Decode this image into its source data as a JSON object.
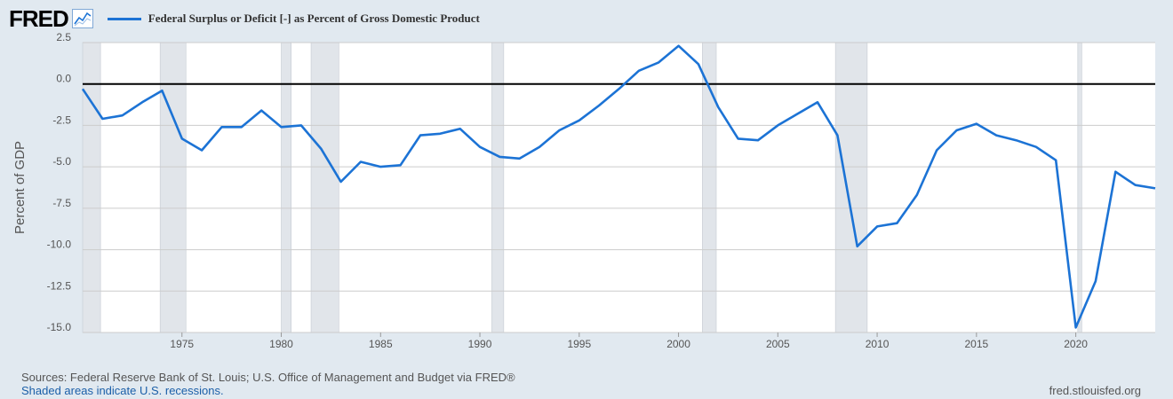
{
  "header": {
    "logo_text": "FRED",
    "logo_icon": "line-graph-icon"
  },
  "legend": {
    "label": "Federal Surplus or Deficit [-] as Percent of Gross Domestic Product",
    "color": "#1c73d5"
  },
  "footer": {
    "sources": "Sources: Federal Reserve Bank of St. Louis; U.S. Office of Management and Budget via FRED®",
    "recessions": "Shaded areas indicate U.S. recessions.",
    "site": "fred.stlouisfed.org"
  },
  "colors": {
    "background": "#e1e9f0",
    "plot": "#ffffff",
    "grid": "#cccccc",
    "recession": "#e1e5ea",
    "line": "#1c73d5",
    "zero_line": "#000000"
  },
  "chart_data": {
    "type": "line",
    "title": "Federal Surplus or Deficit [-] as Percent of Gross Domestic Product",
    "xlabel": "",
    "ylabel": "Percent of GDP",
    "xlim": [
      1970,
      2024
    ],
    "ylim": [
      -15.0,
      2.5
    ],
    "yticks": [
      2.5,
      0.0,
      -2.5,
      -5.0,
      -7.5,
      -10.0,
      -12.5,
      -15.0
    ],
    "ytick_labels": [
      "2.5",
      "0.0",
      "-2.5",
      "-5.0",
      "-7.5",
      "-10.0",
      "-12.5",
      "-15.0"
    ],
    "xticks": [
      1975,
      1980,
      1985,
      1990,
      1995,
      2000,
      2005,
      2010,
      2015,
      2020
    ],
    "xtick_labels": [
      "1975",
      "1980",
      "1985",
      "1990",
      "1995",
      "2000",
      "2005",
      "2010",
      "2015",
      "2020"
    ],
    "grid": true,
    "reference_line": 0,
    "recessions": [
      [
        1970.0,
        1970.9
      ],
      [
        1973.9,
        1975.2
      ],
      [
        1980.0,
        1980.5
      ],
      [
        1981.5,
        1982.9
      ],
      [
        1990.6,
        1991.2
      ],
      [
        2001.2,
        2001.9
      ],
      [
        2007.9,
        2009.5
      ],
      [
        2020.1,
        2020.3
      ]
    ],
    "series": [
      {
        "name": "Federal Surplus or Deficit [-] as Percent of Gross Domestic Product",
        "x": [
          1970,
          1971,
          1972,
          1973,
          1974,
          1975,
          1976,
          1977,
          1978,
          1979,
          1980,
          1981,
          1982,
          1983,
          1984,
          1985,
          1986,
          1987,
          1988,
          1989,
          1990,
          1991,
          1992,
          1993,
          1994,
          1995,
          1996,
          1997,
          1998,
          1999,
          2000,
          2001,
          2002,
          2003,
          2004,
          2005,
          2006,
          2007,
          2008,
          2009,
          2010,
          2011,
          2012,
          2013,
          2014,
          2015,
          2016,
          2017,
          2018,
          2019,
          2020,
          2021,
          2022,
          2023,
          2024
        ],
        "values": [
          -0.3,
          -2.1,
          -1.9,
          -1.1,
          -0.4,
          -3.3,
          -4.0,
          -2.6,
          -2.6,
          -1.6,
          -2.6,
          -2.5,
          -3.9,
          -5.9,
          -4.7,
          -5.0,
          -4.9,
          -3.1,
          -3.0,
          -2.7,
          -3.8,
          -4.4,
          -4.5,
          -3.8,
          -2.8,
          -2.2,
          -1.3,
          -0.3,
          0.8,
          1.3,
          2.3,
          1.2,
          -1.4,
          -3.3,
          -3.4,
          -2.5,
          -1.8,
          -1.1,
          -3.1,
          -9.8,
          -8.6,
          -8.4,
          -6.7,
          -4.0,
          -2.8,
          -2.4,
          -3.1,
          -3.4,
          -3.8,
          -4.6,
          -14.7,
          -11.9,
          -5.3,
          -6.1,
          -6.3
        ]
      }
    ]
  }
}
